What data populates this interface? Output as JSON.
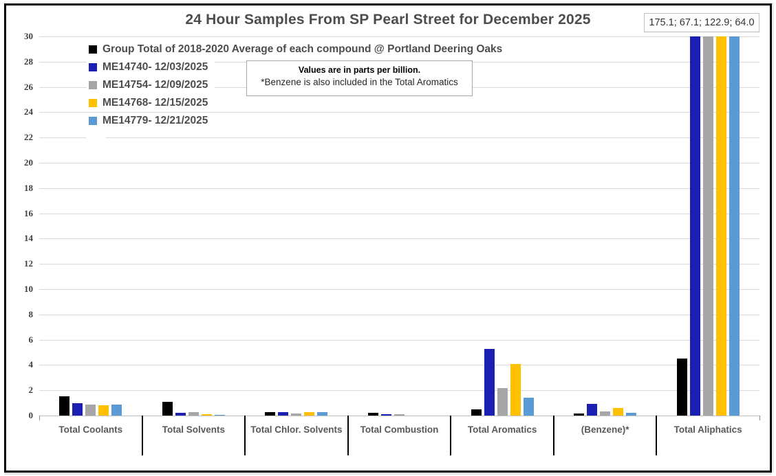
{
  "annotations": {
    "offscale_values": "175.1; 67.1; 122.9; 64.0",
    "note_bold": "Values are in parts per billion.",
    "note_regular": "*Benzene is also included in the Total Aromatics"
  },
  "chart_data": {
    "type": "bar",
    "title": "24 Hour Samples From SP Pearl Street for December 2025",
    "value_unit": "parts per billion",
    "categories": [
      "Total Coolants",
      "Total Solvents",
      "Total Chlor. Solvents",
      "Total Combustion",
      "Total Aromatics",
      "(Benzene)*",
      "Total Aliphatics"
    ],
    "series": [
      {
        "name": "Group Total of 2018-2020 Average of each compound @ Portland Deering Oaks",
        "color": "#000000",
        "values": [
          1.5,
          1.1,
          0.3,
          0.2,
          0.5,
          0.15,
          4.5
        ]
      },
      {
        "name": "ME14740- 12/03/2025",
        "color": "#1c20b2",
        "values": [
          1.0,
          0.2,
          0.3,
          0.1,
          5.3,
          0.95,
          175.1
        ]
      },
      {
        "name": "ME14754- 12/09/2025",
        "color": "#a6a6a6",
        "values": [
          0.85,
          0.3,
          0.15,
          0.1,
          2.15,
          0.35,
          67.1
        ]
      },
      {
        "name": "ME14768- 12/15/2025",
        "color": "#ffc000",
        "values": [
          0.8,
          0.1,
          0.28,
          0,
          4.1,
          0.6,
          122.9
        ]
      },
      {
        "name": "ME14779- 12/21/2025",
        "color": "#5b9bd5",
        "values": [
          0.85,
          0.05,
          0.28,
          0,
          1.4,
          0.2,
          64.0
        ]
      }
    ],
    "ylim": [
      0,
      30
    ],
    "ytick_step": 2,
    "grid": true,
    "legend_position": "top-left",
    "offscale_values_box": "175.1; 67.1; 122.9; 64.0"
  }
}
